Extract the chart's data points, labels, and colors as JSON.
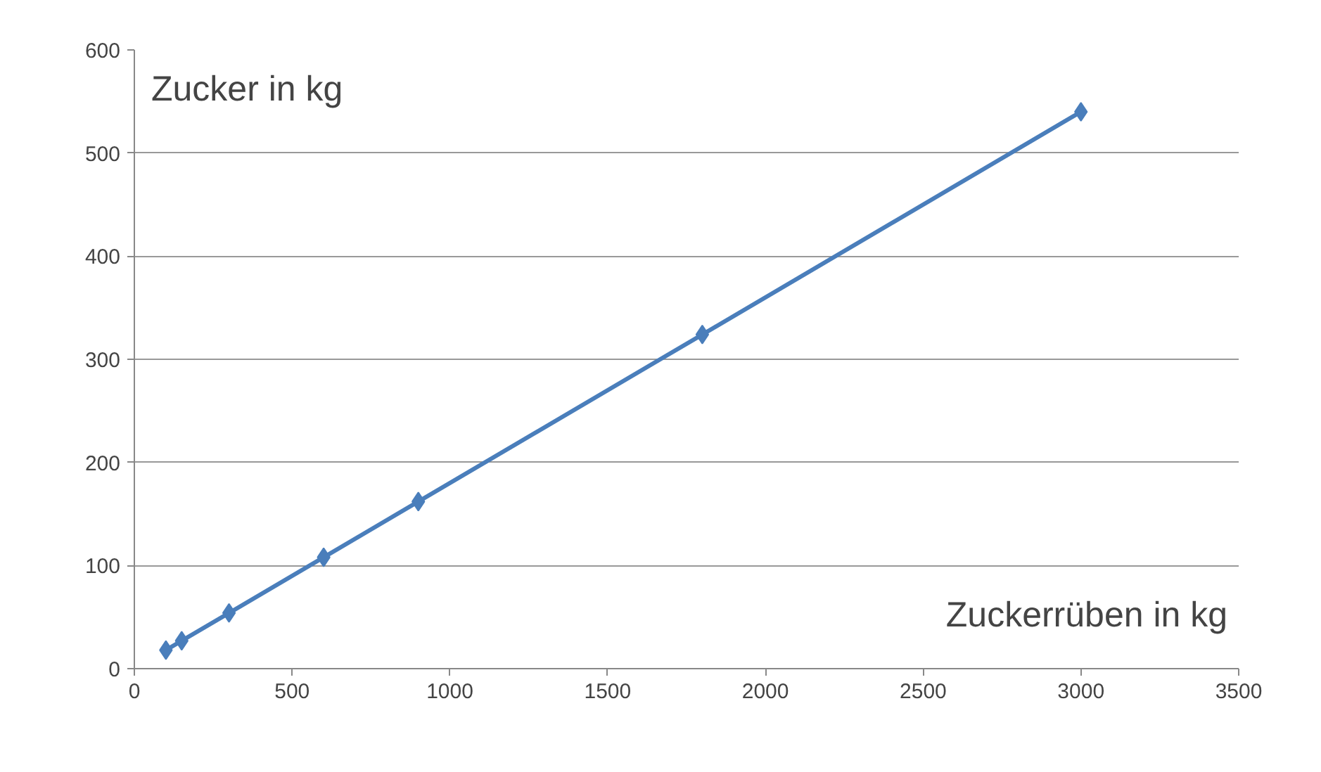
{
  "chart_data": {
    "type": "line",
    "xlabel": "Zuckerrüben in kg",
    "ylabel": "Zucker in kg",
    "x": [
      100,
      150,
      300,
      600,
      900,
      1800,
      3000
    ],
    "series": [
      {
        "color": "#4a7ebb",
        "values": [
          18,
          27,
          54,
          108,
          162,
          324,
          540
        ]
      }
    ],
    "xlim": [
      0,
      3500
    ],
    "xticks": [
      0,
      500,
      1000,
      1500,
      2000,
      2500,
      3000,
      3500
    ],
    "ylim": [
      0,
      600
    ],
    "yticks": [
      0,
      100,
      200,
      300,
      400,
      500,
      600
    ],
    "grid": "y",
    "marker": "diamond",
    "line_style": "solid"
  }
}
